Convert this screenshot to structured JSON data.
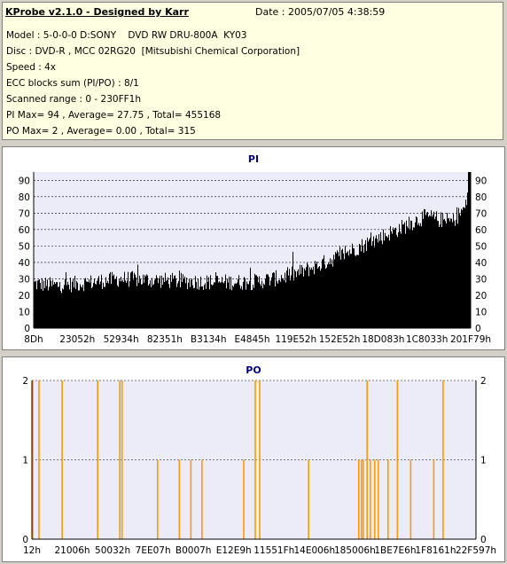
{
  "info": {
    "title": "KProbe v2.1.0 - Designed by Karr",
    "date": "Date : 2005/07/05 4:38:59",
    "lines": [
      "Model : 5-0-0-0 D:SONY    DVD RW DRU-800A  KY03",
      "Disc : DVD-R , MCC 02RG20  [Mitsubishi Chemical Corporation]",
      "Speed : 4x",
      "ECC blocks sum (PI/PO) : 8/1",
      "Scanned range : 0 - 230FF1h",
      "PI Max= 94 , Average= 27.75 , Total= 455168",
      "PO Max= 2 , Average= 0.00 , Total= 315"
    ]
  },
  "colors": {
    "plot_bg": "#ececf8",
    "pi_bars": "#000000",
    "po_bars": "#ff9900",
    "title": "#00007f",
    "grid": "#000000",
    "panel_bg": "#ffffff",
    "info_bg": "#ffffe1"
  },
  "chart_data": [
    {
      "type": "bar",
      "title": "PI",
      "ylim": [
        0,
        95
      ],
      "yticks": [
        0,
        10,
        20,
        30,
        40,
        50,
        60,
        70,
        80,
        90
      ],
      "xtick_labels": [
        "8Dh",
        "23052h",
        "52934h",
        "82351h",
        "B3134h",
        "E4845h",
        "119E52h",
        "152E52h",
        "18D083h",
        "1C8033h",
        "201F79h"
      ],
      "grid": "dashed horizontal",
      "profile_x_fraction": [
        0,
        0.05,
        0.1,
        0.2,
        0.3,
        0.4,
        0.5,
        0.55,
        0.6,
        0.65,
        0.7,
        0.75,
        0.8,
        0.85,
        0.88,
        0.9,
        0.93,
        0.96,
        0.99,
        1.0
      ],
      "profile_y": [
        27,
        26,
        27,
        30,
        29,
        28,
        28,
        30,
        33,
        38,
        44,
        50,
        56,
        62,
        66,
        68,
        66,
        65,
        74,
        94
      ],
      "noise_amplitude": 5
    },
    {
      "type": "bar",
      "title": "PO",
      "ylim": [
        0,
        2
      ],
      "yticks": [
        0,
        1,
        2
      ],
      "xtick_labels": [
        "12h",
        "21006h",
        "50032h",
        "7EE07h",
        "B0007h",
        "E12E9h",
        "11551Fh",
        "14E006h",
        "185006h",
        "1BE7E6h",
        "1F8161h",
        "22F597h"
      ],
      "grid": "dashed horizontal",
      "spike_x_fraction_value_2": [
        0.002,
        0.016,
        0.068,
        0.148,
        0.198,
        0.203,
        0.503,
        0.513,
        0.755,
        0.823,
        0.926
      ],
      "spike_x_fraction_value_1": [
        0.001,
        0.283,
        0.332,
        0.358,
        0.383,
        0.477,
        0.623,
        0.736,
        0.742,
        0.746,
        0.762,
        0.772,
        0.78,
        0.802,
        0.853,
        0.905
      ]
    }
  ]
}
